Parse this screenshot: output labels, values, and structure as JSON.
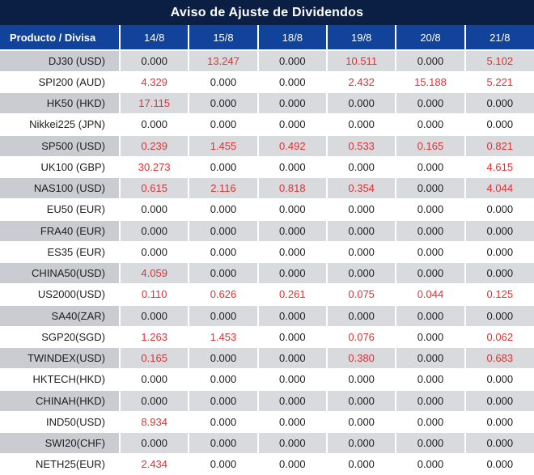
{
  "title": "Aviso de Ajuste de Dividendos",
  "colors": {
    "title_bar_bg": "#0b1f45",
    "header_bg": "#11439a",
    "row_gray_product": "#cbccd1",
    "row_gray_value": "#d9dade",
    "value_red": "#e03131",
    "value_black": "#1d1d1f"
  },
  "table": {
    "product_header": "Producto / Divisa",
    "date_headers": [
      "14/8",
      "15/8",
      "18/8",
      "19/8",
      "20/8",
      "21/8"
    ],
    "rows": [
      {
        "product": "DJ30 (USD)",
        "values": [
          "0.000",
          "13.247",
          "0.000",
          "10.511",
          "0.000",
          "5.102"
        ]
      },
      {
        "product": "SPI200 (AUD)",
        "values": [
          "4.329",
          "0.000",
          "0.000",
          "2.432",
          "15.188",
          "5.221"
        ]
      },
      {
        "product": "HK50 (HKD)",
        "values": [
          "17.115",
          "0.000",
          "0.000",
          "0.000",
          "0.000",
          "0.000"
        ]
      },
      {
        "product": "Nikkei225 (JPN)",
        "values": [
          "0.000",
          "0.000",
          "0.000",
          "0.000",
          "0.000",
          "0.000"
        ]
      },
      {
        "product": "SP500 (USD)",
        "values": [
          "0.239",
          "1.455",
          "0.492",
          "0.533",
          "0.165",
          "0.821"
        ]
      },
      {
        "product": "UK100 (GBP)",
        "values": [
          "30.273",
          "0.000",
          "0.000",
          "0.000",
          "0.000",
          "4.615"
        ]
      },
      {
        "product": "NAS100 (USD)",
        "values": [
          "0.615",
          "2.116",
          "0.818",
          "0.354",
          "0.000",
          "4.044"
        ]
      },
      {
        "product": "EU50 (EUR)",
        "values": [
          "0.000",
          "0.000",
          "0.000",
          "0.000",
          "0.000",
          "0.000"
        ]
      },
      {
        "product": "FRA40 (EUR)",
        "values": [
          "0.000",
          "0.000",
          "0.000",
          "0.000",
          "0.000",
          "0.000"
        ]
      },
      {
        "product": "ES35 (EUR)",
        "values": [
          "0.000",
          "0.000",
          "0.000",
          "0.000",
          "0.000",
          "0.000"
        ]
      },
      {
        "product": "CHINA50(USD)",
        "values": [
          "4.059",
          "0.000",
          "0.000",
          "0.000",
          "0.000",
          "0.000"
        ]
      },
      {
        "product": "US2000(USD)",
        "values": [
          "0.110",
          "0.626",
          "0.261",
          "0.075",
          "0.044",
          "0.125"
        ]
      },
      {
        "product": "SA40(ZAR)",
        "values": [
          "0.000",
          "0.000",
          "0.000",
          "0.000",
          "0.000",
          "0.000"
        ]
      },
      {
        "product": "SGP20(SGD)",
        "values": [
          "1.263",
          "1.453",
          "0.000",
          "0.076",
          "0.000",
          "0.062"
        ]
      },
      {
        "product": "TWINDEX(USD)",
        "values": [
          "0.165",
          "0.000",
          "0.000",
          "0.380",
          "0.000",
          "0.683"
        ]
      },
      {
        "product": "HKTECH(HKD)",
        "values": [
          "0.000",
          "0.000",
          "0.000",
          "0.000",
          "0.000",
          "0.000"
        ]
      },
      {
        "product": "CHINAH(HKD)",
        "values": [
          "0.000",
          "0.000",
          "0.000",
          "0.000",
          "0.000",
          "0.000"
        ]
      },
      {
        "product": "IND50(USD)",
        "values": [
          "8.934",
          "0.000",
          "0.000",
          "0.000",
          "0.000",
          "0.000"
        ]
      },
      {
        "product": "SWI20(CHF)",
        "values": [
          "0.000",
          "0.000",
          "0.000",
          "0.000",
          "0.000",
          "0.000"
        ]
      },
      {
        "product": "NETH25(EUR)",
        "values": [
          "2.434",
          "0.000",
          "0.000",
          "0.000",
          "0.000",
          "0.000"
        ]
      }
    ]
  }
}
